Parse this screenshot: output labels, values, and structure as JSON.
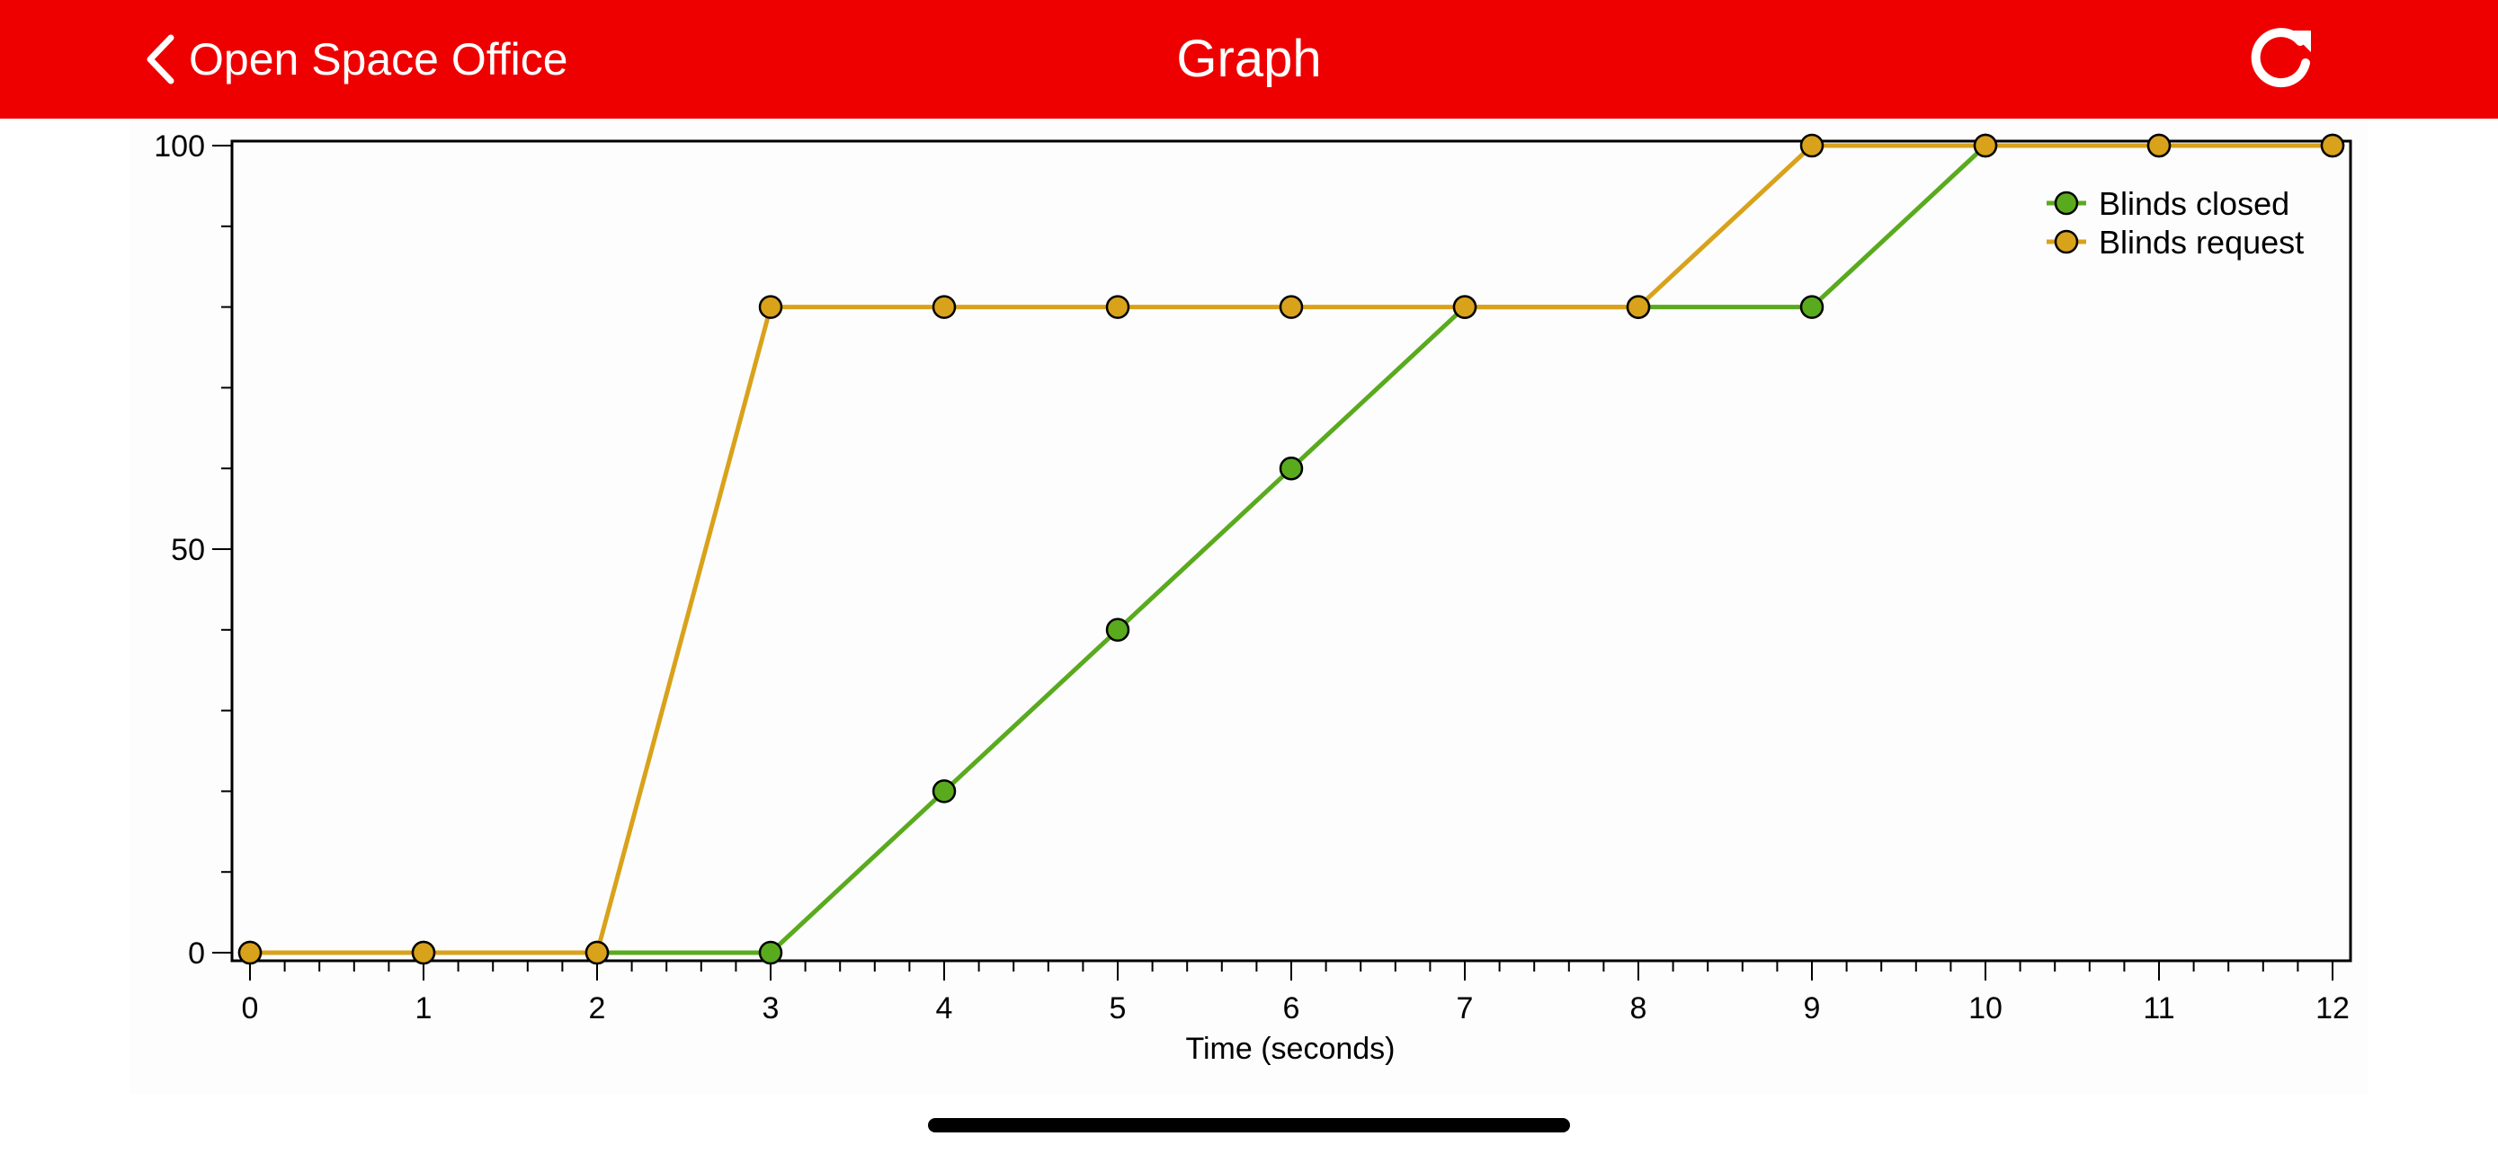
{
  "navbar": {
    "back_label": "Open Space Office",
    "title": "Graph",
    "background_color": "#ee0000",
    "back_icon": "chevron-left-icon",
    "refresh_icon": "refresh-icon"
  },
  "chart_data": {
    "type": "line",
    "title": "",
    "xlabel": "Time (seconds)",
    "ylabel": "",
    "xlim": [
      0,
      12
    ],
    "ylim": [
      0,
      100
    ],
    "x_ticks": [
      0,
      1,
      2,
      3,
      4,
      5,
      6,
      7,
      8,
      9,
      10,
      11,
      12
    ],
    "y_tick_labels": [
      0,
      50,
      100
    ],
    "grid": false,
    "legend_position": "top-right",
    "x": [
      0,
      1,
      2,
      3,
      4,
      5,
      6,
      7,
      8,
      9,
      10,
      11,
      12
    ],
    "series": [
      {
        "name": "Blinds closed",
        "color": "#5aaa1e",
        "values": [
          0,
          0,
          0,
          0,
          20,
          40,
          60,
          80,
          80,
          80,
          100,
          100,
          100
        ]
      },
      {
        "name": "Blinds request",
        "color": "#d9a21b",
        "values": [
          0,
          0,
          0,
          80,
          80,
          80,
          80,
          80,
          80,
          100,
          100,
          100,
          100
        ]
      }
    ]
  }
}
